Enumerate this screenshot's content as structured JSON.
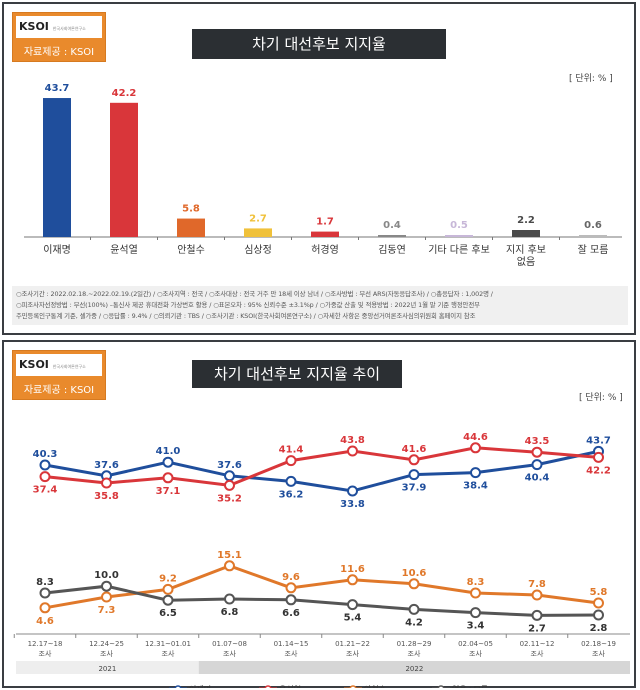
{
  "top": {
    "logo_text": "KSOI",
    "logo_sub": "한국사회여론연구소",
    "source": "자료제공 : KSOI",
    "title": "차기 대선후보 지지율",
    "unit": "[ 단위: % ]",
    "notes": [
      "○조사기간 : 2022.02.18.~2022.02.19.(2일간)  / ○조사지역 : 전국 / ○조사대상 : 전국 거주 만 18세 이상 남녀 / ○조사방법 : 무선 ARS(자동응답조사) / ○총응답자 : 1,002명 /",
      "○피조사자선정방법 : 무선(100%) –통신사 제공 휴대전화 가상번호 활용 / ○표본오차 : 95% 신뢰수준 ±3.1%p / ○가중값 산출 및 적용방법 : 2022년 1월 말 기준 행정안전부",
      "주민등록인구통계 기준, 셀가중 / ○응답률 : 9.4% / ○의뢰기관 : TBS / ○조사기관 : KSOI(한국사회여론연구소) / ○자세한 사항은 중앙선거여론조사심의위원회 홈페이지 참조"
    ]
  },
  "bottom": {
    "logo_text": "KSOI",
    "logo_sub": "한국사회여론연구소",
    "source": "자료제공 : KSOI",
    "title": "차기 대선후보 지지율 추이",
    "unit": "[ 단위: % ]"
  },
  "chart_data": [
    {
      "type": "bar",
      "title": "차기 대선후보 지지율",
      "unit": "%",
      "categories": [
        "이재명",
        "윤석열",
        "안철수",
        "심상정",
        "허경영",
        "김동연",
        "기타 다른 후보",
        "지지 후보 없음",
        "잘 모름"
      ],
      "values": [
        43.7,
        42.2,
        5.8,
        2.7,
        1.7,
        0.4,
        0.5,
        2.2,
        0.6
      ],
      "colors": [
        "#1f4e9c",
        "#d9363a",
        "#e0682a",
        "#f0c13a",
        "#d9363a",
        "#888888",
        "#c7b7d8",
        "#4a4a4a",
        "#bbbbbb"
      ]
    },
    {
      "type": "line",
      "title": "차기 대선후보 지지율 추이",
      "unit": "%",
      "categories": [
        "12.17~18 조사",
        "12.24~25 조사",
        "12.31~01.01 조사",
        "01.07~08 조사",
        "01.14~15 조사",
        "01.21~22 조사",
        "01.28~29 조사",
        "02.04~05 조사",
        "02.11~12 조사",
        "02.18~19 조사"
      ],
      "years": [
        {
          "label": "2021",
          "span": 3
        },
        {
          "label": "2022",
          "span": 7
        }
      ],
      "legend_position": "bottom",
      "series": [
        {
          "name": "이재명",
          "color": "#1f4e9c",
          "values": [
            40.3,
            37.6,
            41.0,
            37.6,
            36.2,
            33.8,
            37.9,
            38.4,
            40.4,
            43.7
          ]
        },
        {
          "name": "윤석열",
          "color": "#d9363a",
          "values": [
            37.4,
            35.8,
            37.1,
            35.2,
            41.4,
            43.8,
            41.6,
            44.6,
            43.5,
            42.2
          ]
        },
        {
          "name": "안철수",
          "color": "#e0782a",
          "values": [
            4.6,
            7.3,
            9.2,
            15.1,
            9.6,
            11.6,
            10.6,
            8.3,
            7.8,
            5.8
          ]
        },
        {
          "name": "없음+모름",
          "color": "#555555",
          "values": [
            8.3,
            10.0,
            6.5,
            6.8,
            6.6,
            5.4,
            4.2,
            3.4,
            2.7,
            2.8
          ]
        }
      ]
    }
  ]
}
